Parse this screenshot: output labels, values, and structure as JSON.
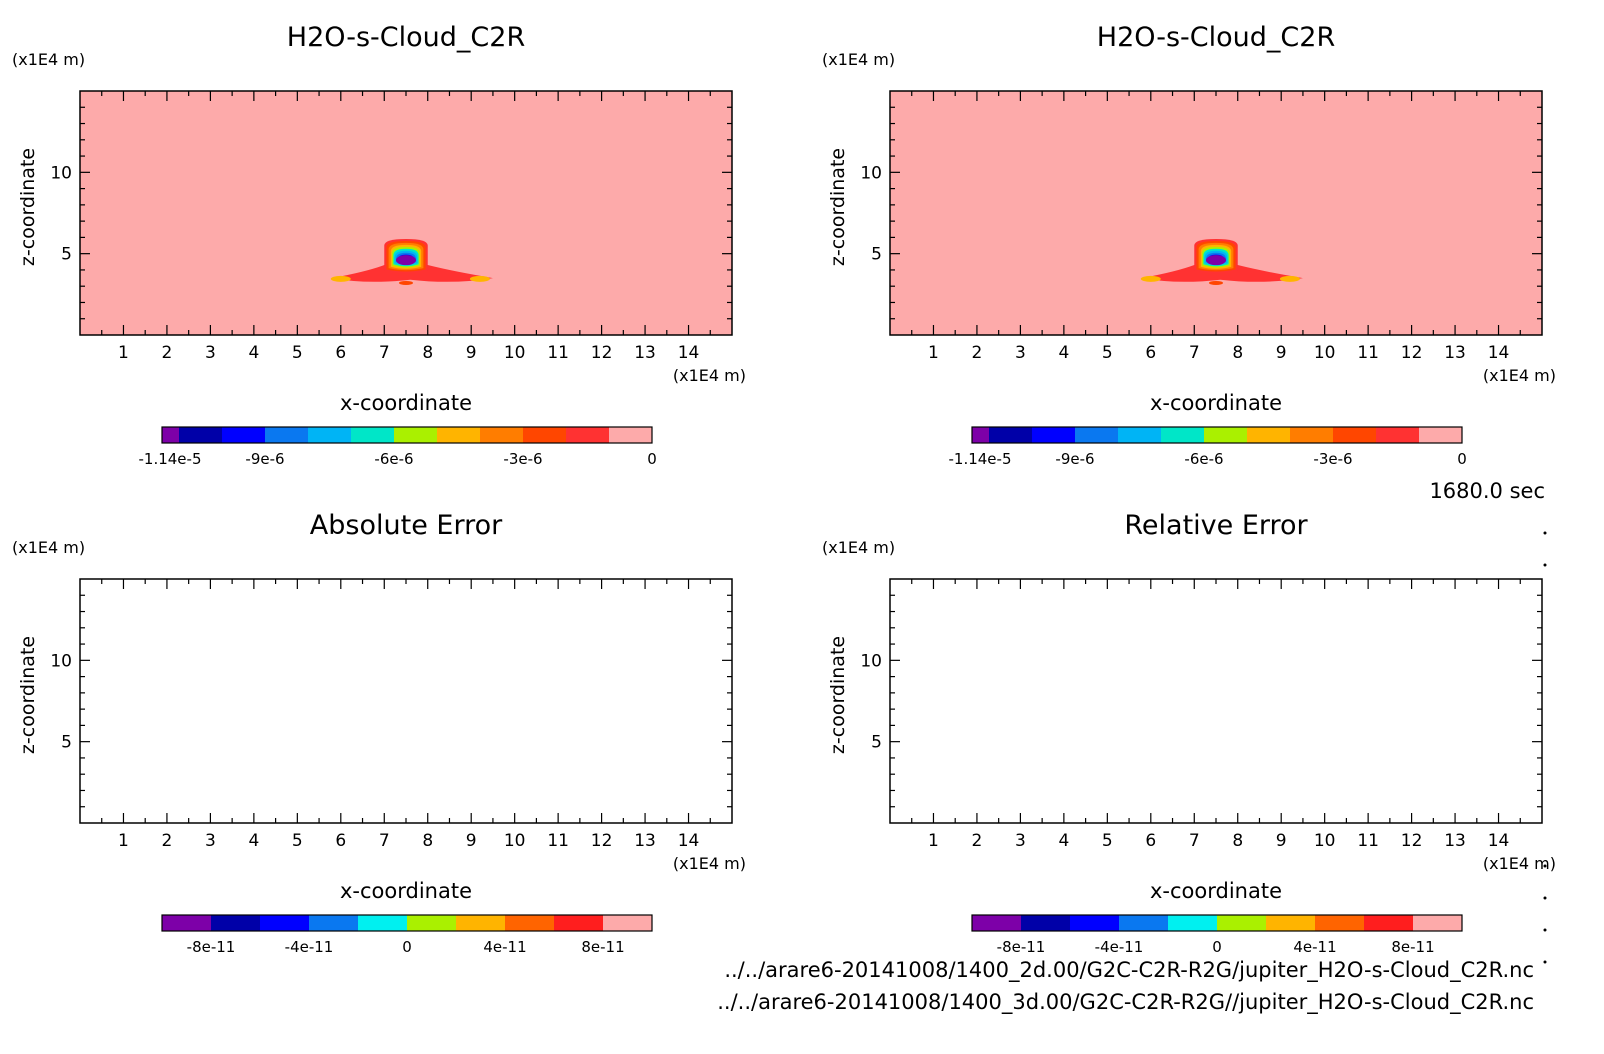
{
  "time_label": "1680.0 sec",
  "footer": {
    "path1": "../../arare6-20141008/1400_2d.00/G2C-C2R-R2G/jupiter_H2O-s-Cloud_C2R.nc",
    "path2": "../../arare6-20141008/1400_3d.00/G2C-C2R-R2G//jupiter_H2O-s-Cloud_C2R.nc"
  },
  "colors": {
    "field_background": "#fdaaaa",
    "frame": "#000000"
  },
  "chart_data": [
    {
      "type": "heatmap",
      "title": "H2O-s-Cloud_C2R",
      "xlabel": "x-coordinate",
      "ylabel": "z-coordinate",
      "x_unit": "(x1E4 m)",
      "y_unit": "(x1E4 m)",
      "xlim": [
        0,
        15
      ],
      "ylim": [
        0,
        15
      ],
      "x_ticks": [
        1,
        2,
        3,
        4,
        5,
        6,
        7,
        8,
        9,
        10,
        11,
        12,
        13,
        14
      ],
      "y_ticks": [
        5,
        10
      ],
      "colorbar": {
        "colors": [
          "#7d00a8",
          "#0000a8",
          "#0000ff",
          "#0a78f0",
          "#00b4f5",
          "#00e6c8",
          "#aaf000",
          "#ffb400",
          "#ff7d00",
          "#ff4600",
          "#ff3232",
          "#fdaaaa"
        ],
        "tick_labels": [
          "-1.14e-5",
          "-9e-6",
          "-6e-6",
          "-3e-6",
          "0"
        ],
        "min": -1.14e-05,
        "max": 0
      },
      "field": "cloud-blob"
    },
    {
      "type": "heatmap",
      "title": "H2O-s-Cloud_C2R",
      "xlabel": "x-coordinate",
      "ylabel": "z-coordinate",
      "x_unit": "(x1E4 m)",
      "y_unit": "(x1E4 m)",
      "xlim": [
        0,
        15
      ],
      "ylim": [
        0,
        15
      ],
      "x_ticks": [
        1,
        2,
        3,
        4,
        5,
        6,
        7,
        8,
        9,
        10,
        11,
        12,
        13,
        14
      ],
      "y_ticks": [
        5,
        10
      ],
      "colorbar": {
        "colors": [
          "#7d00a8",
          "#0000a8",
          "#0000ff",
          "#0a78f0",
          "#00b4f5",
          "#00e6c8",
          "#aaf000",
          "#ffb400",
          "#ff7d00",
          "#ff4600",
          "#ff3232",
          "#fdaaaa"
        ],
        "tick_labels": [
          "-1.14e-5",
          "-9e-6",
          "-6e-6",
          "-3e-6",
          "0"
        ],
        "min": -1.14e-05,
        "max": 0
      },
      "field": "cloud-blob"
    },
    {
      "type": "heatmap",
      "title": "Absolute Error",
      "xlabel": "x-coordinate",
      "ylabel": "z-coordinate",
      "x_unit": "(x1E4 m)",
      "y_unit": "(x1E4 m)",
      "xlim": [
        0,
        15
      ],
      "ylim": [
        0,
        15
      ],
      "x_ticks": [
        1,
        2,
        3,
        4,
        5,
        6,
        7,
        8,
        9,
        10,
        11,
        12,
        13,
        14
      ],
      "y_ticks": [
        5,
        10
      ],
      "colorbar": {
        "colors": [
          "#7d00a8",
          "#0000a8",
          "#0000ff",
          "#0a78f0",
          "#00f0f0",
          "#aaf000",
          "#ffb400",
          "#ff6400",
          "#ff1e1e",
          "#fdaaaa"
        ],
        "tick_labels": [
          "-8e-11",
          "-4e-11",
          "0",
          "4e-11",
          "8e-11"
        ],
        "min": -1e-10,
        "max": 1e-10
      },
      "field": "blank"
    },
    {
      "type": "heatmap",
      "title": "Relative Error",
      "xlabel": "x-coordinate",
      "ylabel": "z-coordinate",
      "x_unit": "(x1E4 m)",
      "y_unit": "(x1E4 m)",
      "xlim": [
        0,
        15
      ],
      "ylim": [
        0,
        15
      ],
      "x_ticks": [
        1,
        2,
        3,
        4,
        5,
        6,
        7,
        8,
        9,
        10,
        11,
        12,
        13,
        14
      ],
      "y_ticks": [
        5,
        10
      ],
      "colorbar": {
        "colors": [
          "#7d00a8",
          "#0000a8",
          "#0000ff",
          "#0a78f0",
          "#00f0f0",
          "#aaf000",
          "#ffb400",
          "#ff6400",
          "#ff1e1e",
          "#fdaaaa"
        ],
        "tick_labels": [
          "-8e-11",
          "-4e-11",
          "0",
          "4e-11",
          "8e-11"
        ],
        "min": -1e-10,
        "max": 1e-10
      },
      "field": "blank"
    }
  ]
}
